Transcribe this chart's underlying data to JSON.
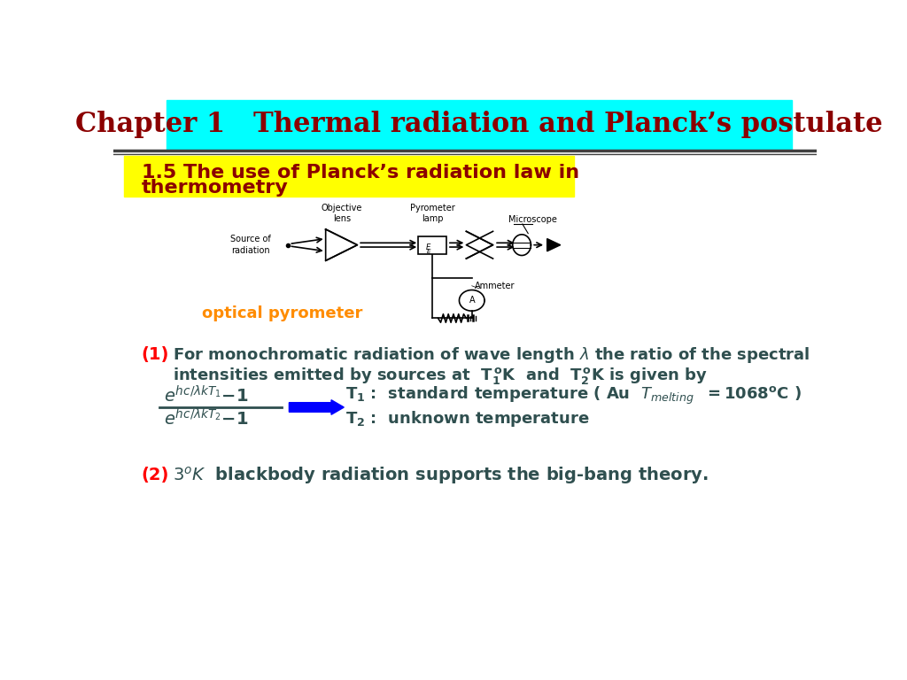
{
  "title": "Chapter 1   Thermal radiation and Planck’s postulate",
  "title_bg": "#00FFFF",
  "title_color": "#8B0000",
  "title_fontsize": 22,
  "subtitle_line1": "1.5 The use of Planck’s radiation law in",
  "subtitle_line2": "thermometry",
  "subtitle_bg": "#FFFF00",
  "subtitle_color": "#8B0000",
  "subtitle_fontsize": 16,
  "optical_pyrometer_color": "#FF8C00",
  "body_color": "#2F4F4F",
  "bg_color": "#FFFFFF",
  "separator_color": "#404040"
}
